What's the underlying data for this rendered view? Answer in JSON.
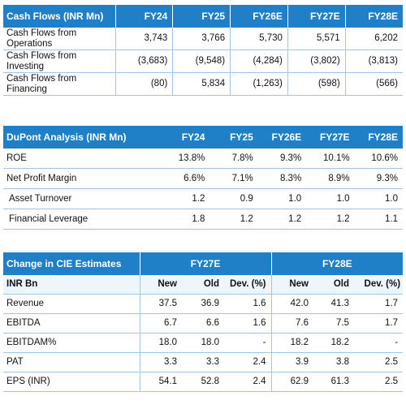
{
  "cash_flows": {
    "title": "Cash Flows (INR Mn)",
    "years": [
      "FY24",
      "FY25",
      "FY26E",
      "FY27E",
      "FY28E"
    ],
    "rows": [
      {
        "label_line1": "Cash Flows from",
        "label_line2": "Operations",
        "values": [
          "3,743",
          "3,766",
          "5,730",
          "5,571",
          "6,202"
        ]
      },
      {
        "label_line1": "Cash Flows from",
        "label_line2": "Investing",
        "values": [
          "(3,683)",
          "(9,548)",
          "(4,284)",
          "(3,802)",
          "(3,813)"
        ]
      },
      {
        "label_line1": "Cash Flows from",
        "label_line2": "Financing",
        "values": [
          "(80)",
          "5,834",
          "(1,263)",
          "(598)",
          "(566)"
        ]
      }
    ]
  },
  "dupont": {
    "title": "DuPont Analysis (INR Mn)",
    "years": [
      "FY24",
      "FY25",
      "FY26E",
      "FY27E",
      "FY28E"
    ],
    "rows": [
      {
        "label": "ROE",
        "values": [
          "13.8%",
          "7.8%",
          "9.3%",
          "10.1%",
          "10.6%"
        ]
      },
      {
        "label": "Net Profit Margin",
        "values": [
          "6.6%",
          "7.1%",
          "8.3%",
          "8.9%",
          "9.3%"
        ]
      },
      {
        "label": "Asset Turnover",
        "values": [
          "1.2",
          "0.9",
          "1.0",
          "1.0",
          "1.0"
        ]
      },
      {
        "label": "Financial Leverage",
        "values": [
          "1.8",
          "1.2",
          "1.2",
          "1.2",
          "1.1"
        ]
      }
    ]
  },
  "cie": {
    "title": "Change in CIE Estimates",
    "group1": "FY27E",
    "group2": "FY28E",
    "unit_label": "INR Bn",
    "subheaders": [
      "New",
      "Old",
      "Dev. (%)",
      "New",
      "Old",
      "Dev. (%)"
    ],
    "rows": [
      {
        "label": "Revenue",
        "values": [
          "37.5",
          "36.9",
          "1.6",
          "42.0",
          "41.3",
          "1.7"
        ]
      },
      {
        "label": "EBITDA",
        "values": [
          "6.7",
          "6.6",
          "1.6",
          "7.6",
          "7.5",
          "1.7"
        ]
      },
      {
        "label": "EBITDAM%",
        "values": [
          "18.0",
          "18.0",
          "-",
          "18.2",
          "18.2",
          "-"
        ]
      },
      {
        "label": "PAT",
        "values": [
          "3.3",
          "3.3",
          "2.4",
          "3.9",
          "3.8",
          "2.5"
        ]
      },
      {
        "label": "EPS (INR)",
        "values": [
          "54.1",
          "52.8",
          "2.4",
          "62.9",
          "61.3",
          "2.5"
        ]
      }
    ]
  }
}
